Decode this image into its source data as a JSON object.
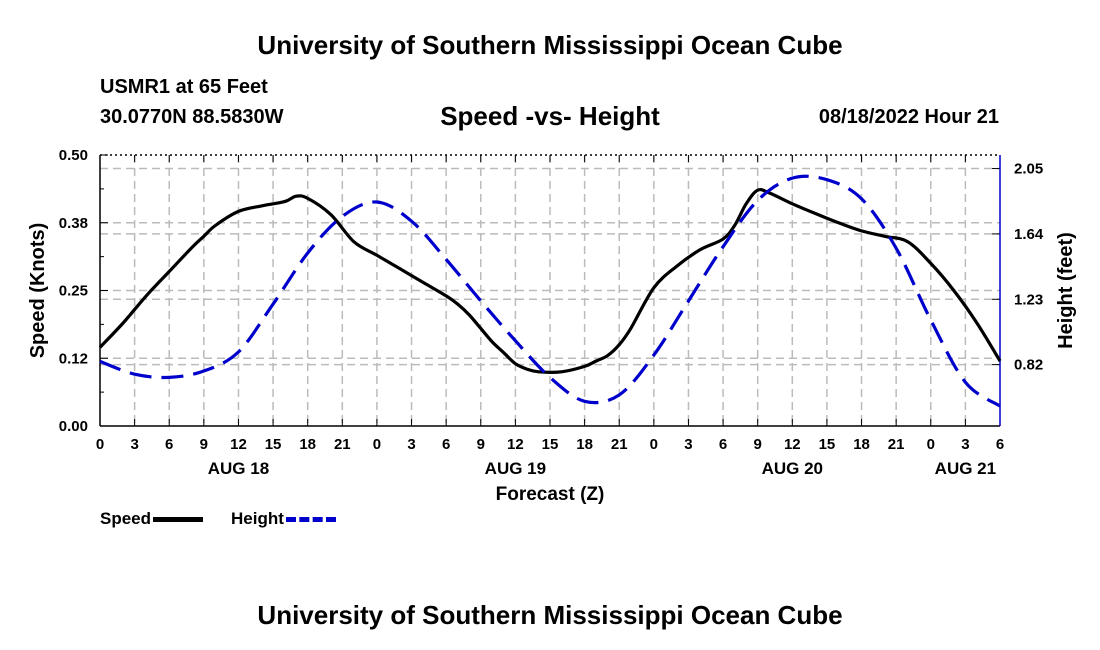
{
  "page": {
    "title_top": "University of Southern Mississippi Ocean Cube",
    "title_bottom": "University of Southern Mississippi Ocean Cube",
    "station": "USMR1 at 65 Feet",
    "coords": "30.0770N  88.5830W",
    "subtitle": "Speed -vs- Height",
    "datetime": "08/18/2022 Hour 21"
  },
  "colors": {
    "speed": "#000000",
    "height": "#0000cc",
    "grid": "#bbbbbb"
  },
  "chart_data": {
    "type": "line",
    "title": "Speed -vs- Height",
    "xlabel": "Forecast (Z)",
    "ylabel": "Speed (Knots)",
    "y2label": "Height (feet)",
    "x_unit": "hours from AUG 18 00Z",
    "xlim": [
      0,
      78
    ],
    "ylim": [
      0,
      0.5
    ],
    "y2lim": [
      0.435,
      2.135
    ],
    "x_ticks": [
      {
        "x": 0,
        "label": "0"
      },
      {
        "x": 3,
        "label": "3"
      },
      {
        "x": 6,
        "label": "6"
      },
      {
        "x": 9,
        "label": "9"
      },
      {
        "x": 12,
        "label": "12"
      },
      {
        "x": 15,
        "label": "15"
      },
      {
        "x": 18,
        "label": "18"
      },
      {
        "x": 21,
        "label": "21"
      },
      {
        "x": 24,
        "label": "0"
      },
      {
        "x": 27,
        "label": "3"
      },
      {
        "x": 30,
        "label": "6"
      },
      {
        "x": 33,
        "label": "9"
      },
      {
        "x": 36,
        "label": "12"
      },
      {
        "x": 39,
        "label": "15"
      },
      {
        "x": 42,
        "label": "18"
      },
      {
        "x": 45,
        "label": "21"
      },
      {
        "x": 48,
        "label": "0"
      },
      {
        "x": 51,
        "label": "3"
      },
      {
        "x": 54,
        "label": "6"
      },
      {
        "x": 57,
        "label": "9"
      },
      {
        "x": 60,
        "label": "12"
      },
      {
        "x": 63,
        "label": "15"
      },
      {
        "x": 66,
        "label": "18"
      },
      {
        "x": 69,
        "label": "21"
      },
      {
        "x": 72,
        "label": "0"
      },
      {
        "x": 75,
        "label": "3"
      },
      {
        "x": 78,
        "label": "6"
      }
    ],
    "date_labels": [
      {
        "x": 12,
        "label": "AUG 18"
      },
      {
        "x": 36,
        "label": "AUG 19"
      },
      {
        "x": 60,
        "label": "AUG 20"
      },
      {
        "x": 75,
        "label": "AUG 21"
      }
    ],
    "y_ticks": [
      {
        "value": 0.0,
        "label": "0.00"
      },
      {
        "value": 0.125,
        "label": "0.12"
      },
      {
        "value": 0.25,
        "label": "0.25"
      },
      {
        "value": 0.375,
        "label": "0.38"
      },
      {
        "value": 0.5,
        "label": "0.50"
      }
    ],
    "y2_ticks": [
      {
        "value": 0.82,
        "label": "0.82"
      },
      {
        "value": 1.23,
        "label": "1.23"
      },
      {
        "value": 1.64,
        "label": "1.64"
      },
      {
        "value": 2.05,
        "label": "2.05"
      }
    ],
    "series": [
      {
        "name": "Speed",
        "axis": "left",
        "style": "solid",
        "x": [
          0,
          2,
          4,
          6,
          8,
          9,
          10,
          12,
          14,
          16,
          17,
          18,
          20,
          22,
          24,
          26,
          28,
          30,
          31,
          32,
          33,
          34,
          35,
          36,
          37,
          38,
          40,
          42,
          43,
          44,
          45,
          46,
          48,
          50,
          52,
          54,
          55,
          56,
          57,
          58,
          60,
          62,
          64,
          66,
          68,
          70,
          72,
          74,
          76,
          78
        ],
        "values": [
          0.145,
          0.19,
          0.24,
          0.285,
          0.33,
          0.35,
          0.37,
          0.396,
          0.406,
          0.414,
          0.424,
          0.42,
          0.39,
          0.34,
          0.315,
          0.29,
          0.265,
          0.24,
          0.225,
          0.205,
          0.18,
          0.155,
          0.135,
          0.115,
          0.105,
          0.1,
          0.1,
          0.11,
          0.12,
          0.13,
          0.15,
          0.18,
          0.255,
          0.295,
          0.325,
          0.345,
          0.37,
          0.41,
          0.435,
          0.43,
          0.41,
          0.392,
          0.375,
          0.36,
          0.35,
          0.34,
          0.3,
          0.25,
          0.19,
          0.12
        ]
      },
      {
        "name": "Height",
        "axis": "right",
        "style": "dashed",
        "x": [
          0,
          3,
          6,
          9,
          12,
          15,
          18,
          21,
          24,
          27,
          30,
          33,
          36,
          39,
          42,
          45,
          48,
          51,
          54,
          57,
          60,
          63,
          66,
          69,
          72,
          75,
          78
        ],
        "values": [
          0.84,
          0.76,
          0.74,
          0.78,
          0.9,
          1.2,
          1.52,
          1.75,
          1.84,
          1.72,
          1.48,
          1.22,
          0.97,
          0.74,
          0.59,
          0.63,
          0.88,
          1.22,
          1.56,
          1.85,
          1.99,
          1.98,
          1.86,
          1.55,
          1.1,
          0.71,
          0.56
        ]
      }
    ],
    "legend": [
      {
        "label": "Speed",
        "style": "solid"
      },
      {
        "label": "Height",
        "style": "dashed"
      }
    ],
    "grid": true,
    "legend_position": "bottom-left"
  }
}
